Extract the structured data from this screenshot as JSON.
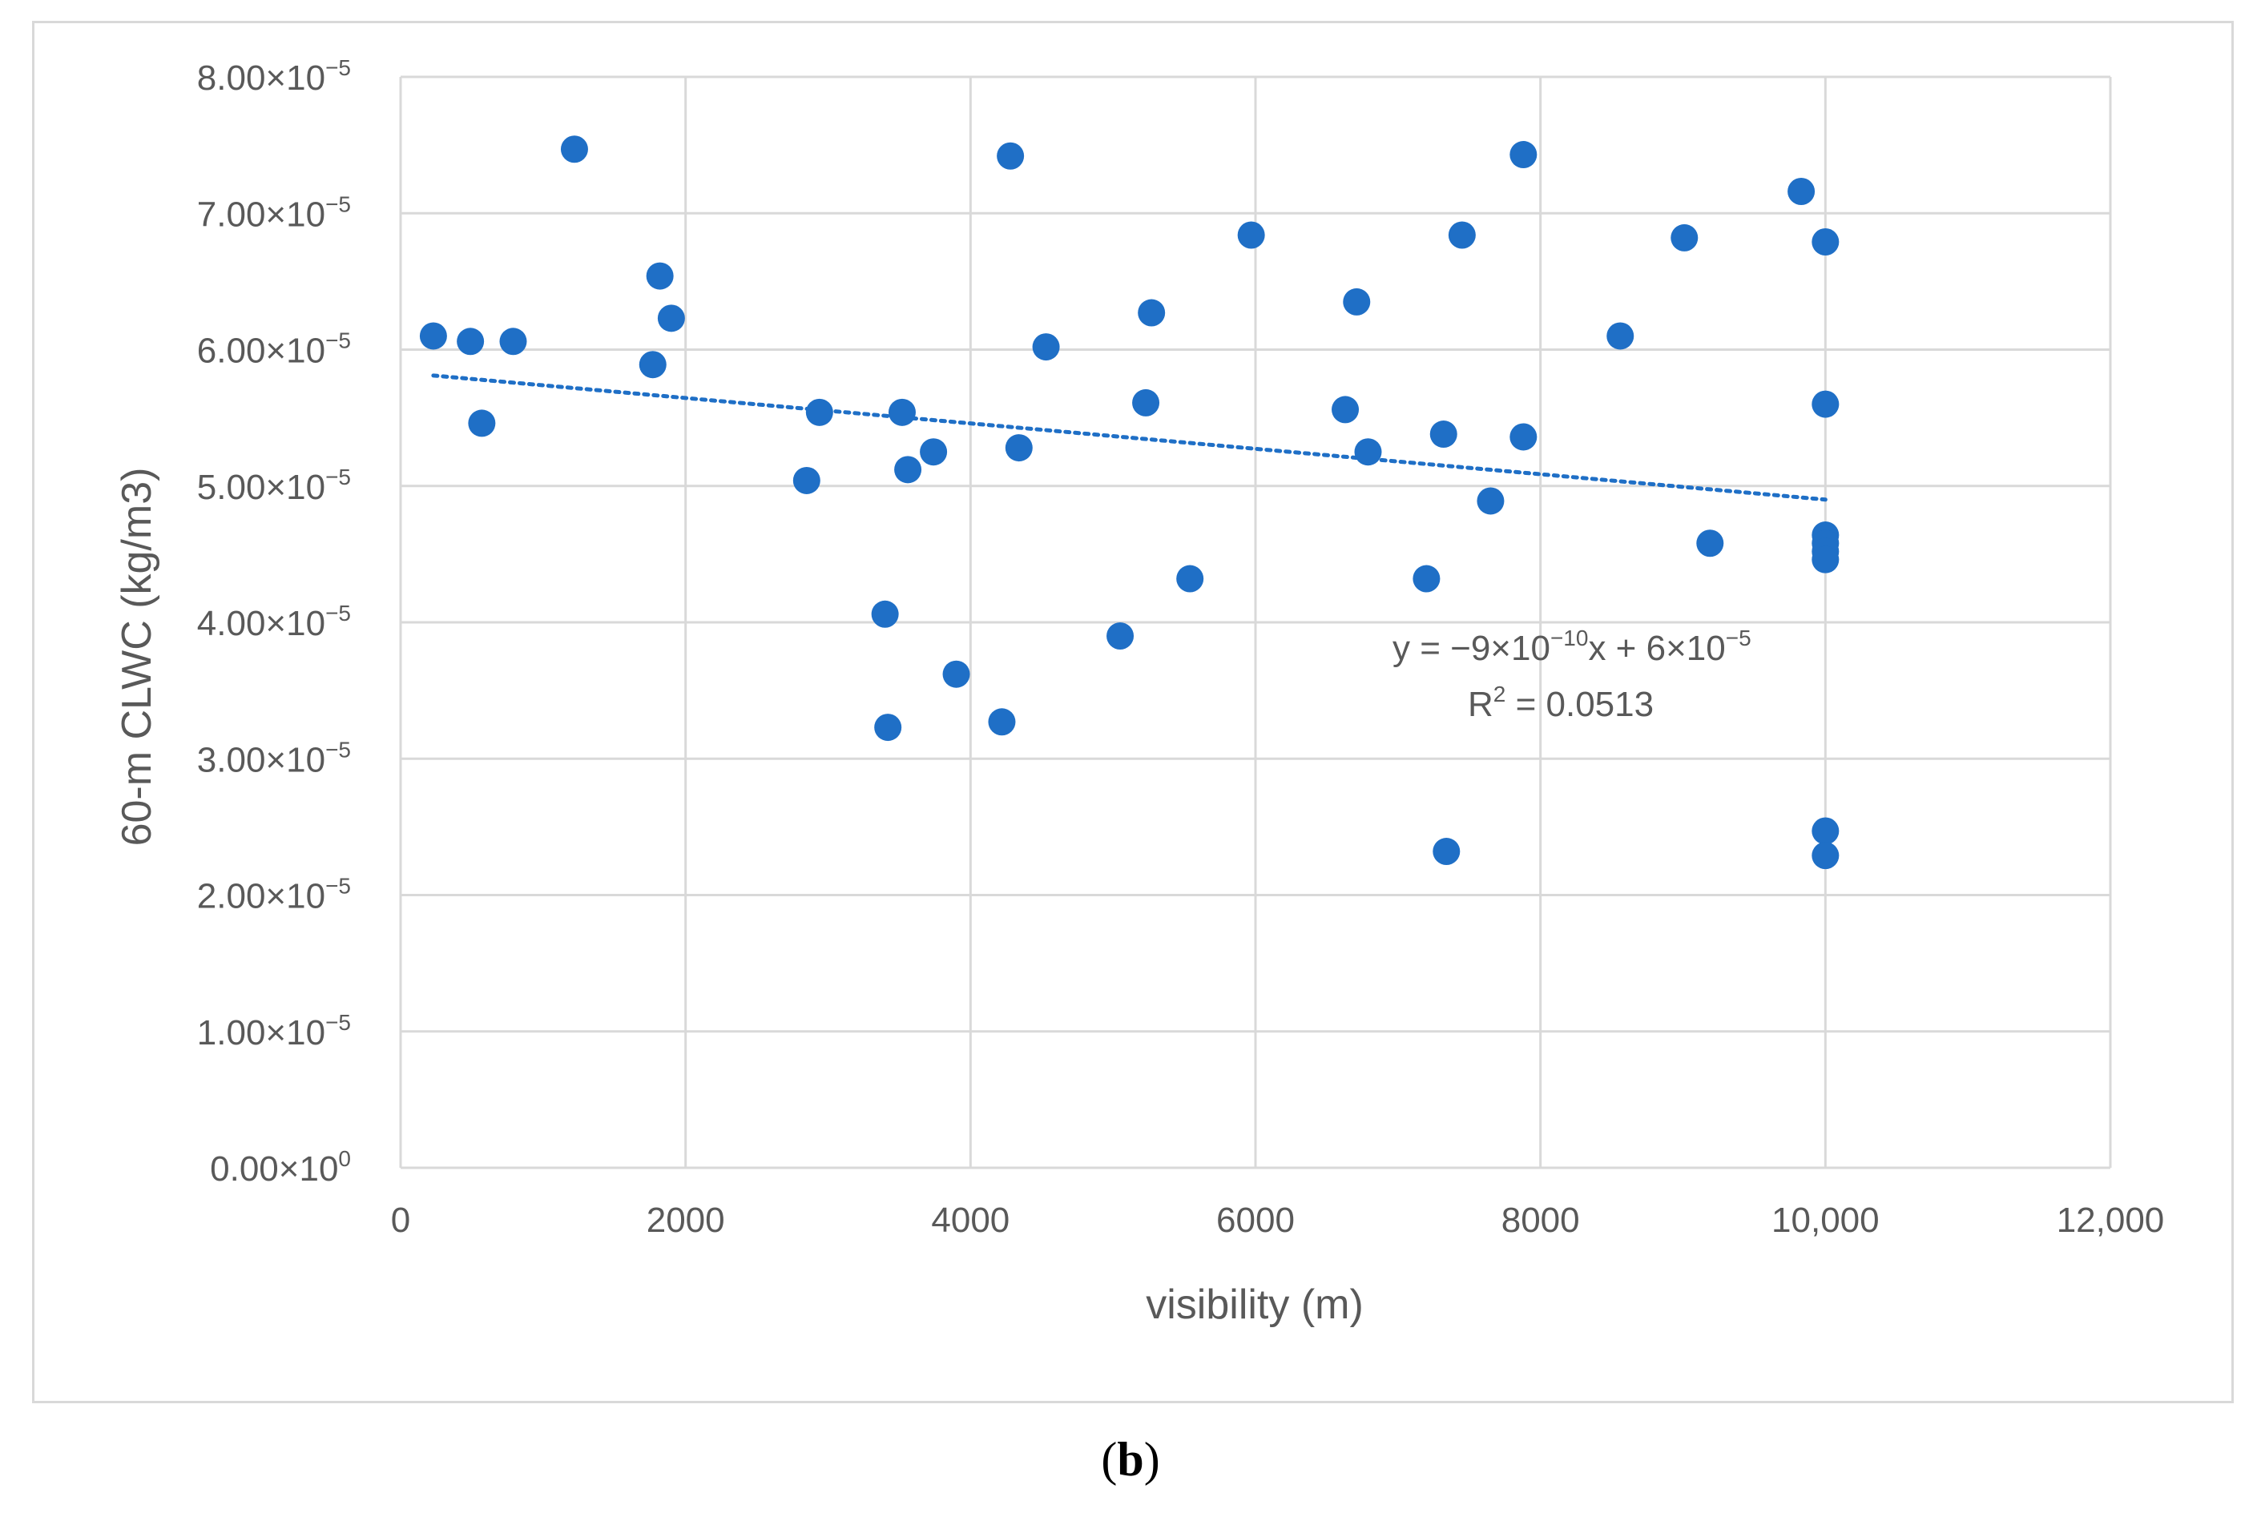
{
  "chart_data": {
    "type": "scatter",
    "xlabel": "visibility (m)",
    "ylabel": "60-m CLWC (kg/m3)",
    "xlim": [
      0,
      12000
    ],
    "ylim": [
      0,
      8e-05
    ],
    "grid": true,
    "x_ticks": [
      {
        "value": 0,
        "label": "0"
      },
      {
        "value": 2000,
        "label": "2000"
      },
      {
        "value": 4000,
        "label": "4000"
      },
      {
        "value": 6000,
        "label": "6000"
      },
      {
        "value": 8000,
        "label": "8000"
      },
      {
        "value": 10000,
        "label": "10,000"
      },
      {
        "value": 12000,
        "label": "12,000"
      }
    ],
    "y_ticks": [
      {
        "value": 0,
        "mantissa": "0.00×10",
        "exp": "0"
      },
      {
        "value": 1e-05,
        "mantissa": "1.00×10",
        "exp": "−5"
      },
      {
        "value": 2e-05,
        "mantissa": "2.00×10",
        "exp": "−5"
      },
      {
        "value": 3e-05,
        "mantissa": "3.00×10",
        "exp": "−5"
      },
      {
        "value": 4e-05,
        "mantissa": "4.00×10",
        "exp": "−5"
      },
      {
        "value": 5e-05,
        "mantissa": "5.00×10",
        "exp": "−5"
      },
      {
        "value": 6e-05,
        "mantissa": "6.00×10",
        "exp": "−5"
      },
      {
        "value": 7e-05,
        "mantissa": "7.00×10",
        "exp": "−5"
      },
      {
        "value": 8e-05,
        "mantissa": "8.00×10",
        "exp": "−5"
      }
    ],
    "series": [
      {
        "name": "CLWC",
        "color": "#1f6fc6",
        "points": [
          [
            230,
            6.1e-05
          ],
          [
            490,
            6.06e-05
          ],
          [
            570,
            5.46e-05
          ],
          [
            790,
            6.06e-05
          ],
          [
            1220,
            7.47e-05
          ],
          [
            1770,
            5.89e-05
          ],
          [
            1820,
            6.54e-05
          ],
          [
            1900,
            6.23e-05
          ],
          [
            2850,
            5.04e-05
          ],
          [
            2940,
            5.54e-05
          ],
          [
            3400,
            4.06e-05
          ],
          [
            3420,
            3.23e-05
          ],
          [
            3520,
            5.54e-05
          ],
          [
            3560,
            5.12e-05
          ],
          [
            3740,
            5.25e-05
          ],
          [
            3900,
            3.62e-05
          ],
          [
            4220,
            3.27e-05
          ],
          [
            4280,
            7.42e-05
          ],
          [
            4340,
            5.28e-05
          ],
          [
            4530,
            6.02e-05
          ],
          [
            5050,
            3.9e-05
          ],
          [
            5230,
            5.61e-05
          ],
          [
            5270,
            6.27e-05
          ],
          [
            5540,
            4.32e-05
          ],
          [
            5970,
            6.84e-05
          ],
          [
            6630,
            5.56e-05
          ],
          [
            6710,
            6.35e-05
          ],
          [
            6790,
            5.25e-05
          ],
          [
            7200,
            4.32e-05
          ],
          [
            7320,
            5.38e-05
          ],
          [
            7340,
            2.32e-05
          ],
          [
            7450,
            6.84e-05
          ],
          [
            7650,
            4.89e-05
          ],
          [
            7880,
            7.43e-05
          ],
          [
            7880,
            5.36e-05
          ],
          [
            8560,
            6.1e-05
          ],
          [
            9010,
            6.82e-05
          ],
          [
            9190,
            4.58e-05
          ],
          [
            9830,
            7.16e-05
          ],
          [
            10000,
            6.79e-05
          ],
          [
            10000,
            5.6e-05
          ],
          [
            10000,
            4.64e-05
          ],
          [
            10000,
            4.58e-05
          ],
          [
            10000,
            4.52e-05
          ],
          [
            10000,
            4.46e-05
          ],
          [
            10000,
            2.47e-05
          ],
          [
            10000,
            2.29e-05
          ]
        ]
      }
    ],
    "trendline": {
      "type": "linear",
      "x_range": [
        230,
        10000
      ],
      "y_start": 5.81e-05,
      "y_end": 4.9e-05,
      "color": "#1f6fc6",
      "equation": {
        "p1": "y = −9×10",
        "e1": "−10",
        "p2": "x + 6×10",
        "e2": "−5"
      },
      "r2": {
        "p1": "R",
        "e1": "2",
        "p2": " = 0.0513"
      }
    },
    "colors": {
      "grid": "#d9d9d9",
      "text": "#595959",
      "marker": "#1f6fc6"
    }
  },
  "caption": {
    "open": "(",
    "letter": "b",
    "close": ")"
  }
}
